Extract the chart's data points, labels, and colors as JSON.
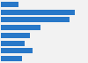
{
  "values": [
    13000,
    56000,
    52000,
    30000,
    22000,
    18000,
    24000,
    16000
  ],
  "bar_color": "#2878c8",
  "background_color": "#f2f2f2",
  "xlim": [
    0,
    65000
  ],
  "figsize": [
    1.0,
    0.71
  ],
  "dpi": 100,
  "bar_height": 0.7
}
